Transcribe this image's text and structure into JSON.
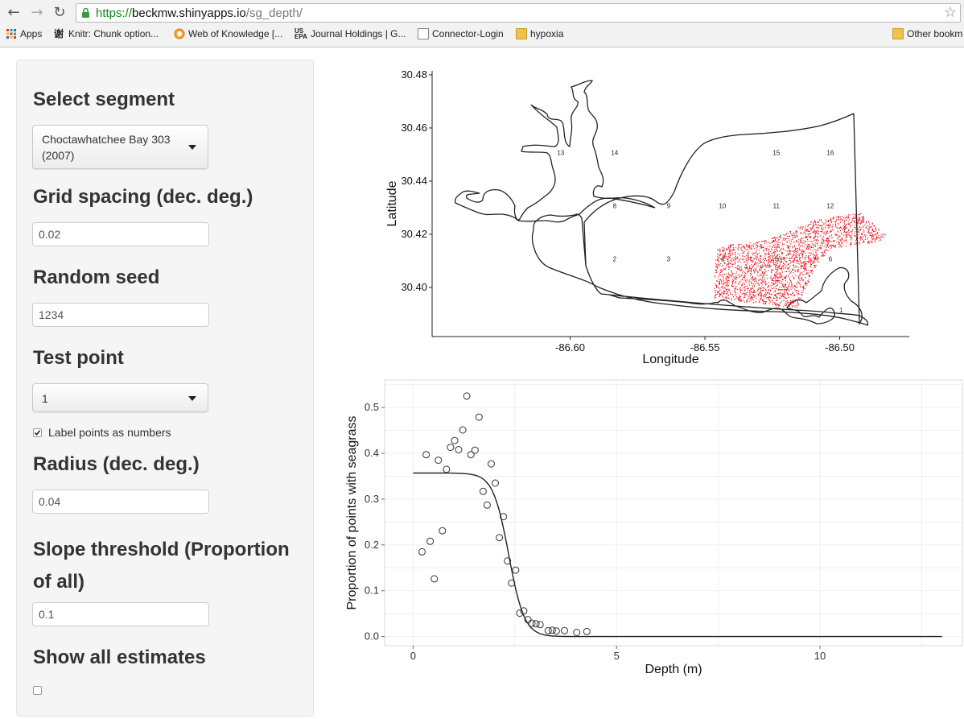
{
  "browser": {
    "url_scheme": "https://",
    "url_host": "beckmw.shinyapps.io",
    "url_path": "/sg_depth/",
    "nav_icons": [
      "back-arrow-icon",
      "forward-arrow-icon",
      "reload-icon"
    ],
    "bookmarks": [
      {
        "label": "Apps",
        "icon": "apps-grid-icon"
      },
      {
        "label": "Knitr: Chunk option...",
        "icon": "knitr-favicon"
      },
      {
        "label": "Web of Knowledge [...",
        "icon": "wok-favicon"
      },
      {
        "label": "Journal Holdings | G...",
        "icon": "usepa-favicon"
      },
      {
        "label": "Connector-Login",
        "icon": "page-icon"
      },
      {
        "label": "hypoxia",
        "icon": "folder-icon"
      }
    ],
    "other_bookmarks": "Other bookm"
  },
  "sidebar": {
    "segment_label": "Select segment",
    "segment_value": "Choctawhatchee Bay 303 (2007)",
    "grid_label": "Grid spacing (dec. deg.)",
    "grid_value": "0.02",
    "seed_label": "Random seed",
    "seed_value": "1234",
    "testpoint_label": "Test point",
    "testpoint_value": "1",
    "label_numbers_text": "Label points as numbers",
    "label_numbers_checked": true,
    "radius_label": "Radius (dec. deg.)",
    "radius_value": "0.04",
    "slope_label": "Slope threshold (Proportion of all)",
    "slope_value": "0.1",
    "show_all_label": "Show all estimates",
    "show_all_checked": false
  },
  "map_plot": {
    "xlabel": "Longitude",
    "ylabel": "Latitude",
    "xticks": [
      "-86.60",
      "-86.55",
      "-86.50"
    ],
    "yticks": [
      "30.48",
      "30.46",
      "30.44",
      "30.42",
      "30.40"
    ],
    "point_color": "#e8000b",
    "grid_labels": [
      {
        "t": "1",
        "x": -86.4995,
        "y": 30.3915
      },
      {
        "t": "2",
        "x": -86.5835,
        "y": 30.4108
      },
      {
        "t": "3",
        "x": -86.5635,
        "y": 30.4108
      },
      {
        "t": "4",
        "x": -86.5435,
        "y": 30.4108
      },
      {
        "t": "5",
        "x": -86.5235,
        "y": 30.4108
      },
      {
        "t": "6",
        "x": -86.5035,
        "y": 30.4108
      },
      {
        "t": "8",
        "x": -86.5835,
        "y": 30.4308
      },
      {
        "t": "9",
        "x": -86.5635,
        "y": 30.4308
      },
      {
        "t": "10",
        "x": -86.5435,
        "y": 30.4308
      },
      {
        "t": "11",
        "x": -86.5235,
        "y": 30.4308
      },
      {
        "t": "12",
        "x": -86.5035,
        "y": 30.4308
      },
      {
        "t": "13",
        "x": -86.6035,
        "y": 30.4508
      },
      {
        "t": "14",
        "x": -86.5835,
        "y": 30.4508
      },
      {
        "t": "15",
        "x": -86.5235,
        "y": 30.4508
      },
      {
        "t": "16",
        "x": -86.5035,
        "y": 30.4508
      }
    ]
  },
  "chart_data": {
    "type": "scatter",
    "xlabel": "Depth (m)",
    "ylabel": "Proportion of points with seagrass",
    "xlim": [
      -0.7,
      13.5
    ],
    "ylim": [
      -0.02,
      0.56
    ],
    "xticks": [
      0,
      5,
      10
    ],
    "yticks": [
      0.0,
      0.1,
      0.2,
      0.3,
      0.4,
      0.5
    ],
    "grid": true,
    "points": [
      [
        0.22,
        0.185
      ],
      [
        0.32,
        0.397
      ],
      [
        0.42,
        0.208
      ],
      [
        0.52,
        0.126
      ],
      [
        0.62,
        0.385
      ],
      [
        0.72,
        0.231
      ],
      [
        0.82,
        0.365
      ],
      [
        0.92,
        0.413
      ],
      [
        1.02,
        0.428
      ],
      [
        1.12,
        0.408
      ],
      [
        1.22,
        0.451
      ],
      [
        1.32,
        0.525
      ],
      [
        1.42,
        0.397
      ],
      [
        1.52,
        0.407
      ],
      [
        1.62,
        0.479
      ],
      [
        1.72,
        0.317
      ],
      [
        1.82,
        0.287
      ],
      [
        1.92,
        0.377
      ],
      [
        2.02,
        0.335
      ],
      [
        2.12,
        0.216
      ],
      [
        2.22,
        0.262
      ],
      [
        2.32,
        0.165
      ],
      [
        2.42,
        0.117
      ],
      [
        2.52,
        0.145
      ],
      [
        2.62,
        0.051
      ],
      [
        2.72,
        0.056
      ],
      [
        2.82,
        0.037
      ],
      [
        2.92,
        0.029
      ],
      [
        3.02,
        0.028
      ],
      [
        3.12,
        0.026
      ],
      [
        3.32,
        0.013
      ],
      [
        3.42,
        0.014
      ],
      [
        3.52,
        0.012
      ],
      [
        3.72,
        0.013
      ],
      [
        4.02,
        0.009
      ],
      [
        4.27,
        0.011
      ]
    ],
    "fit": {
      "upper": 0.357,
      "midpoint": 2.35,
      "rate": 5.2,
      "x_range": [
        0.0,
        13.0
      ]
    }
  }
}
